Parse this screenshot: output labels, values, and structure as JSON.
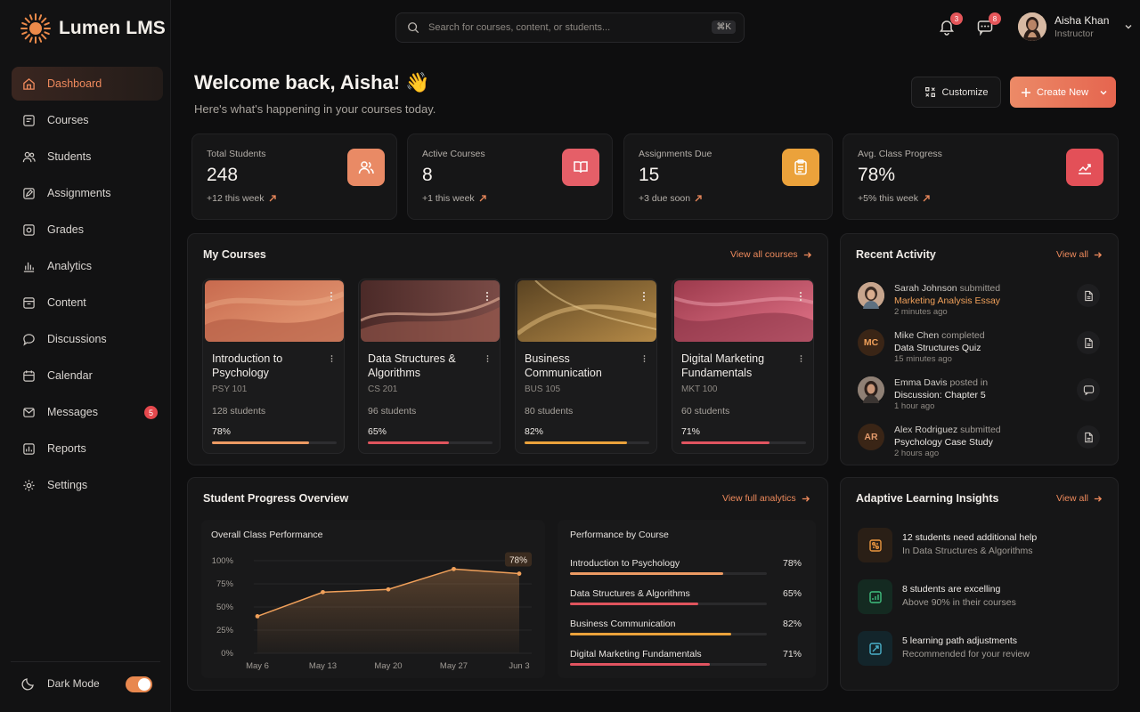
{
  "app": {
    "name": "Lumen LMS"
  },
  "sidebar": {
    "items": [
      {
        "label": "Dashboard",
        "icon": "home-icon",
        "active": true
      },
      {
        "label": "Courses",
        "icon": "book-icon"
      },
      {
        "label": "Students",
        "icon": "users-icon"
      },
      {
        "label": "Assignments",
        "icon": "edit-icon"
      },
      {
        "label": "Grades",
        "icon": "grade-icon"
      },
      {
        "label": "Analytics",
        "icon": "bar-chart-icon"
      },
      {
        "label": "Content",
        "icon": "folder-icon"
      },
      {
        "label": "Discussions",
        "icon": "chat-icon"
      },
      {
        "label": "Calendar",
        "icon": "calendar-icon"
      },
      {
        "label": "Messages",
        "icon": "mail-icon",
        "badge": "5"
      },
      {
        "label": "Reports",
        "icon": "report-icon"
      },
      {
        "label": "Settings",
        "icon": "gear-icon"
      }
    ],
    "dark_mode_label": "Dark Mode",
    "dark_mode_on": true
  },
  "header": {
    "search_placeholder": "Search for courses, content, or students...",
    "search_shortcut": "⌘K",
    "notifications_count": "3",
    "messages_count": "8",
    "user": {
      "name": "Aisha Khan",
      "role": "Instructor"
    }
  },
  "welcome": {
    "title": "Welcome back, Aisha! 👋",
    "subtitle": "Here's what's happening in your courses today.",
    "customize_label": "Customize",
    "create_label": "Create New"
  },
  "stats": [
    {
      "label": "Total Students",
      "value": "248",
      "change": "+12 this week",
      "color": "#e98a65"
    },
    {
      "label": "Active Courses",
      "value": "8",
      "change": "+1 this week",
      "color": "#e55f68"
    },
    {
      "label": "Assignments Due",
      "value": "15",
      "change": "+3 due soon",
      "color": "#eba23b"
    },
    {
      "label": "Avg. Class Progress",
      "value": "78%",
      "change": "+5% this week",
      "color": "#e35058"
    }
  ],
  "courses": {
    "title": "My Courses",
    "link": "View all courses",
    "items": [
      {
        "name": "Introduction to Psychology",
        "code": "PSY 101",
        "students": "128 students",
        "progress": "78%",
        "value": 0.78,
        "color": "#ec9a63"
      },
      {
        "name": "Data Structures & Algorithms",
        "code": "CS 201",
        "students": "96 students",
        "progress": "65%",
        "value": 0.65,
        "color": "#e0545d"
      },
      {
        "name": "Business Communication",
        "code": "BUS 105",
        "students": "80 students",
        "progress": "82%",
        "value": 0.82,
        "color": "#eba23b"
      },
      {
        "name": "Digital Marketing Fundamentals",
        "code": "MKT 100",
        "students": "60 students",
        "progress": "71%",
        "value": 0.71,
        "color": "#e15460"
      }
    ]
  },
  "activity": {
    "title": "Recent Activity",
    "link": "View all",
    "items": [
      {
        "who": "Sarah Johnson",
        "verb": "submitted",
        "what": "Marketing Analysis Essay",
        "time": "2 minutes ago",
        "initials": ""
      },
      {
        "who": "Mike Chen",
        "verb": "completed",
        "what": "Data Structures Quiz",
        "time": "15 minutes ago",
        "initials": "MC"
      },
      {
        "who": "Emma Davis",
        "verb": "posted in",
        "what": "Discussion: Chapter 5",
        "time": "1 hour ago",
        "initials": ""
      },
      {
        "who": "Alex Rodriguez",
        "verb": "submitted",
        "what": "Psychology Case Study",
        "time": "2 hours ago",
        "initials": "AR"
      }
    ]
  },
  "progress": {
    "title": "Student Progress Overview",
    "link": "View full analytics",
    "performance_title": "Overall Class Performance",
    "by_course_title": "Performance by Course",
    "by_course": [
      {
        "name": "Introduction to Psychology",
        "pct": "78%",
        "value": 0.78,
        "color": "#ec9a63"
      },
      {
        "name": "Data Structures & Algorithms",
        "pct": "65%",
        "value": 0.65,
        "color": "#e0545d"
      },
      {
        "name": "Business Communication",
        "pct": "82%",
        "value": 0.82,
        "color": "#eba23b"
      },
      {
        "name": "Digital Marketing Fundamentals",
        "pct": "71%",
        "value": 0.71,
        "color": "#e15460"
      }
    ]
  },
  "chart_data": {
    "type": "area",
    "title": "Overall Class Performance",
    "x": [
      "May 6",
      "May 13",
      "May 20",
      "May 27",
      "Jun 3"
    ],
    "y_ticks": [
      "100%",
      "75%",
      "50%",
      "25%",
      "0%"
    ],
    "ylim": [
      0,
      100
    ],
    "series": [
      {
        "points": [
          [
            0,
            40
          ],
          [
            1,
            66
          ],
          [
            2,
            69
          ],
          [
            3,
            91
          ],
          [
            4,
            86
          ]
        ]
      }
    ],
    "point_x": [
      0,
      1,
      2,
      3,
      4
    ],
    "annotation": "78%",
    "grid": true,
    "color": "#f0a05a"
  },
  "insights": {
    "title": "Adaptive Learning Insights",
    "link": "View all",
    "items": [
      {
        "headline": "12 students need additional help",
        "sub": "In Data Structures & Algorithms",
        "color": "#e9963f"
      },
      {
        "headline": "8 students are excelling",
        "sub": "Above 90% in their courses",
        "color": "#3fbf7f"
      },
      {
        "headline": "5 learning path adjustments",
        "sub": "Recommended for your review",
        "color": "#4ab0c9"
      }
    ]
  }
}
